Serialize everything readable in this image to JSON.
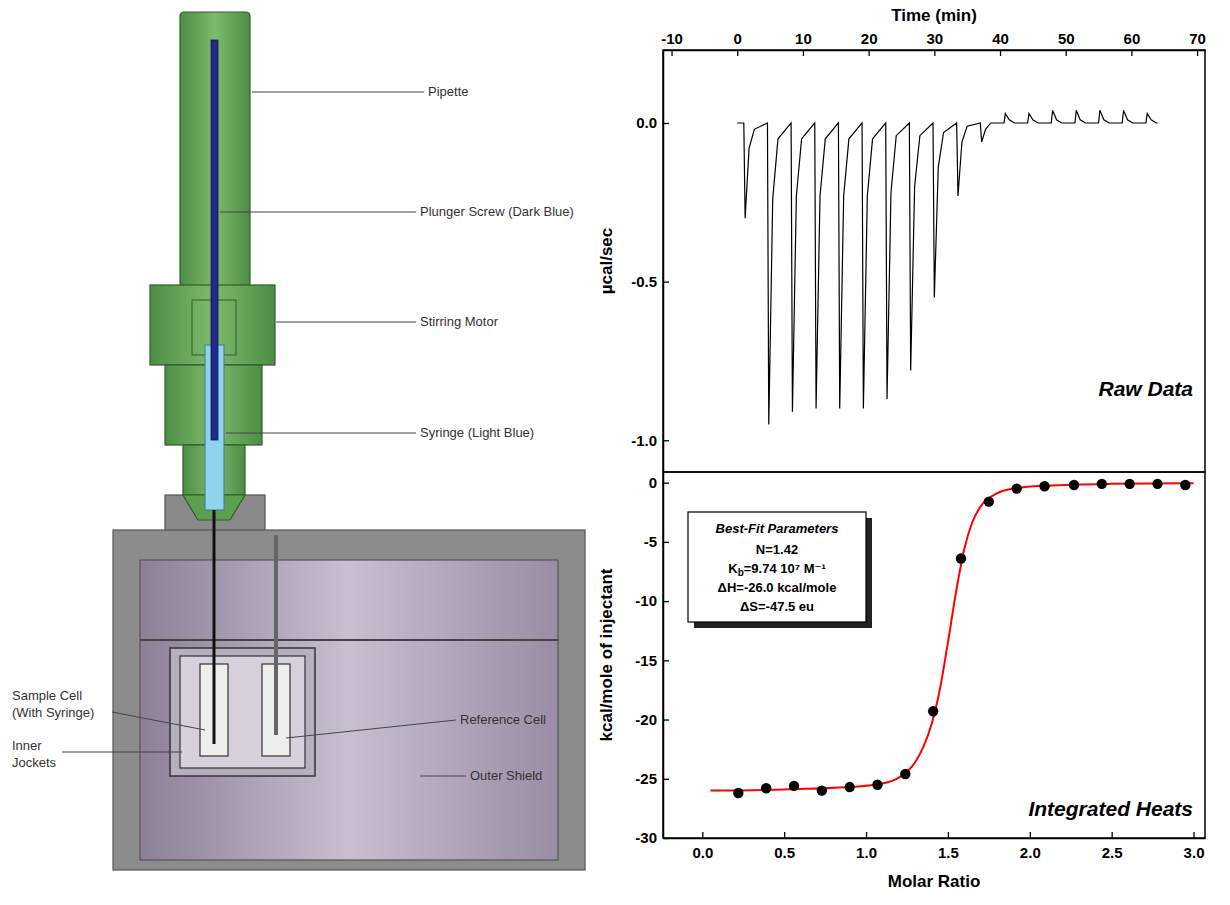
{
  "diagram": {
    "labels": [
      {
        "lines": [
          "Pipette"
        ]
      },
      {
        "lines": [
          "Plunger Screw (Dark Blue)"
        ]
      },
      {
        "lines": [
          "Stirring Motor"
        ]
      },
      {
        "lines": [
          "Syringe (Light Blue)"
        ]
      },
      {
        "lines": [
          "Sample Cell",
          "(With Syringe)"
        ]
      },
      {
        "lines": [
          "Reference Cell"
        ]
      },
      {
        "lines": [
          "Inner",
          "Jockets"
        ]
      },
      {
        "lines": [
          "Outer Shield"
        ]
      }
    ]
  },
  "chart_data": [
    {
      "type": "line",
      "xlabel": "Time (min)",
      "ylabel": "µcal/sec",
      "annotation": "Raw Data",
      "color": "#000000",
      "xlim": [
        -11.3,
        71.2
      ],
      "xticks": [
        -10,
        0,
        10,
        20,
        30,
        40,
        50,
        60,
        70
      ],
      "ylim": [
        -1.1,
        0.23
      ],
      "yticks": [
        {
          "value": 0,
          "label": "0.0"
        },
        -0.5,
        {
          "value": -1,
          "label": "-1.0"
        }
      ],
      "x": [
        0,
        1.0,
        1.2,
        1.8,
        2.6,
        4.6,
        4.8,
        5.4,
        6.2,
        8.2,
        8.4,
        9.0,
        9.8,
        11.8,
        12.0,
        12.6,
        13.4,
        15.4,
        15.6,
        16.2,
        17.0,
        19.0,
        19.2,
        19.8,
        20.6,
        22.6,
        22.8,
        23.4,
        24.2,
        26.2,
        26.4,
        27.0,
        27.8,
        29.8,
        30.0,
        30.6,
        31.4,
        33.4,
        33.6,
        34.2,
        35.0,
        37.0,
        37.2,
        37.8,
        38.6,
        40.6,
        40.8,
        41.4,
        42.2,
        44.2,
        44.4,
        45.0,
        45.8,
        47.8,
        48.0,
        48.6,
        49.4,
        51.4,
        51.6,
        52.2,
        53.0,
        55.0,
        55.2,
        55.8,
        56.6,
        58.6,
        58.8,
        59.4,
        60.2,
        62.2,
        62.4,
        63.0,
        63.8,
        64.0
      ],
      "values": [
        0,
        0,
        -0.3,
        -0.08,
        -0.02,
        0,
        -0.95,
        -0.24,
        -0.05,
        0,
        -0.91,
        -0.23,
        -0.05,
        0,
        -0.9,
        -0.23,
        -0.05,
        0,
        -0.9,
        -0.23,
        -0.05,
        0,
        -0.9,
        -0.23,
        -0.05,
        0,
        -0.87,
        -0.22,
        -0.04,
        0,
        -0.78,
        -0.2,
        -0.04,
        0,
        -0.55,
        -0.14,
        -0.03,
        0,
        -0.23,
        -0.06,
        -0.01,
        0,
        -0.06,
        -0.02,
        0,
        0,
        0.03,
        0.01,
        0,
        0,
        0.03,
        0.01,
        0,
        0,
        0.04,
        0.01,
        0,
        0,
        0.04,
        0.01,
        0,
        0,
        0.04,
        0.01,
        0,
        0,
        0.04,
        0.01,
        0,
        0,
        0.03,
        0.01,
        0,
        0
      ]
    },
    {
      "type": "scatter",
      "xlabel": "Molar Ratio",
      "ylabel": "kcal/mole of injectant",
      "annotation": "Integrated Heats",
      "fit_box": {
        "title": "Best-Fit Parameters",
        "lines": [
          "N=1.42",
          {
            "base": "K",
            "sub": "b",
            "rest": "=9.74 10⁷ M⁻¹"
          },
          "ΔH=-26.0 kcal/mole",
          "ΔS=-47.5 eu"
        ]
      },
      "xlim": [
        -0.24,
        3.07
      ],
      "xticks": [
        {
          "value": 0,
          "label": "0.0"
        },
        0.5,
        {
          "value": 1,
          "label": "1.0"
        },
        1.5,
        {
          "value": 2,
          "label": "2.0"
        },
        2.5,
        {
          "value": 3,
          "label": "3.0"
        }
      ],
      "ylim": [
        -30,
        0.9
      ],
      "yticks": [
        0,
        -5,
        -10,
        -15,
        -20,
        -25,
        -30
      ],
      "series": [
        {
          "type": "scatter",
          "marker": "circle",
          "color": "#000000",
          "x": [
            0.22,
            0.39,
            0.56,
            0.73,
            0.9,
            1.07,
            1.24,
            1.41,
            1.58,
            1.75,
            1.92,
            2.09,
            2.27,
            2.44,
            2.61,
            2.78,
            2.95
          ],
          "values": [
            -26.2,
            -25.8,
            -25.6,
            -26.0,
            -25.7,
            -25.5,
            -24.6,
            -19.3,
            -6.4,
            -1.6,
            -0.5,
            -0.3,
            -0.2,
            -0.1,
            -0.1,
            -0.1,
            -0.2
          ]
        },
        {
          "type": "line",
          "line_style": "solid",
          "color": "#ff0000",
          "x": [
            0.05,
            0.5,
            0.9,
            1.1,
            1.2,
            1.3,
            1.35,
            1.4,
            1.45,
            1.5,
            1.55,
            1.6,
            1.65,
            1.7,
            1.8,
            1.9,
            2.1,
            2.5,
            3.0
          ],
          "values": [
            -26.0,
            -25.9,
            -25.7,
            -25.4,
            -24.9,
            -23.6,
            -22.3,
            -20.4,
            -17.5,
            -13.5,
            -9.2,
            -5.6,
            -3.3,
            -2.0,
            -0.9,
            -0.5,
            -0.25,
            -0.1,
            -0.05
          ]
        }
      ]
    }
  ]
}
